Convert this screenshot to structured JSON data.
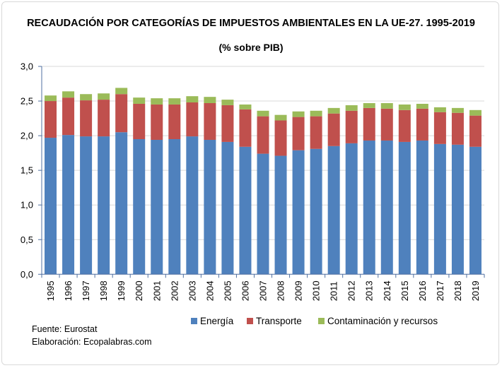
{
  "chart_data": {
    "type": "bar",
    "stacked": true,
    "title": "RECAUDACIÓN POR CATEGORÍAS DE IMPUESTOS AMBIENTALES EN LA UE-27. 1995-2019",
    "subtitle": "(% sobre PIB)",
    "xlabel": "",
    "ylabel": "",
    "ylim": [
      0,
      3.0
    ],
    "yticks": [
      "0,0",
      "0,5",
      "1,0",
      "1,5",
      "2,0",
      "2,5",
      "3,0"
    ],
    "grid": true,
    "legend_position": "bottom",
    "categories": [
      "1995",
      "1996",
      "1997",
      "1998",
      "1999",
      "2000",
      "2001",
      "2002",
      "2003",
      "2004",
      "2005",
      "2006",
      "2007",
      "2008",
      "2009",
      "2010",
      "2011",
      "2012",
      "2013",
      "2014",
      "2015",
      "2016",
      "2017",
      "2018",
      "2019"
    ],
    "series": [
      {
        "name": "Energía",
        "color": "#4f81bd",
        "values": [
          1.97,
          2.01,
          1.99,
          1.99,
          2.05,
          1.95,
          1.94,
          1.95,
          1.99,
          1.94,
          1.91,
          1.84,
          1.74,
          1.71,
          1.79,
          1.81,
          1.85,
          1.89,
          1.93,
          1.93,
          1.91,
          1.93,
          1.88,
          1.87,
          1.84
        ]
      },
      {
        "name": "Transporte",
        "color": "#c0504d",
        "values": [
          0.53,
          0.54,
          0.52,
          0.53,
          0.55,
          0.51,
          0.51,
          0.5,
          0.49,
          0.53,
          0.53,
          0.54,
          0.54,
          0.51,
          0.48,
          0.47,
          0.47,
          0.47,
          0.47,
          0.46,
          0.46,
          0.46,
          0.46,
          0.46,
          0.45
        ]
      },
      {
        "name": "Contaminación y recursos",
        "color": "#9bbb59",
        "values": [
          0.08,
          0.09,
          0.09,
          0.09,
          0.09,
          0.09,
          0.09,
          0.09,
          0.09,
          0.09,
          0.08,
          0.07,
          0.08,
          0.08,
          0.08,
          0.08,
          0.08,
          0.08,
          0.07,
          0.08,
          0.08,
          0.07,
          0.07,
          0.07,
          0.08
        ]
      }
    ]
  },
  "footer": {
    "source": "Fuente: Eurostat",
    "elaboration": "Elaboración: Ecopalabras.com"
  }
}
